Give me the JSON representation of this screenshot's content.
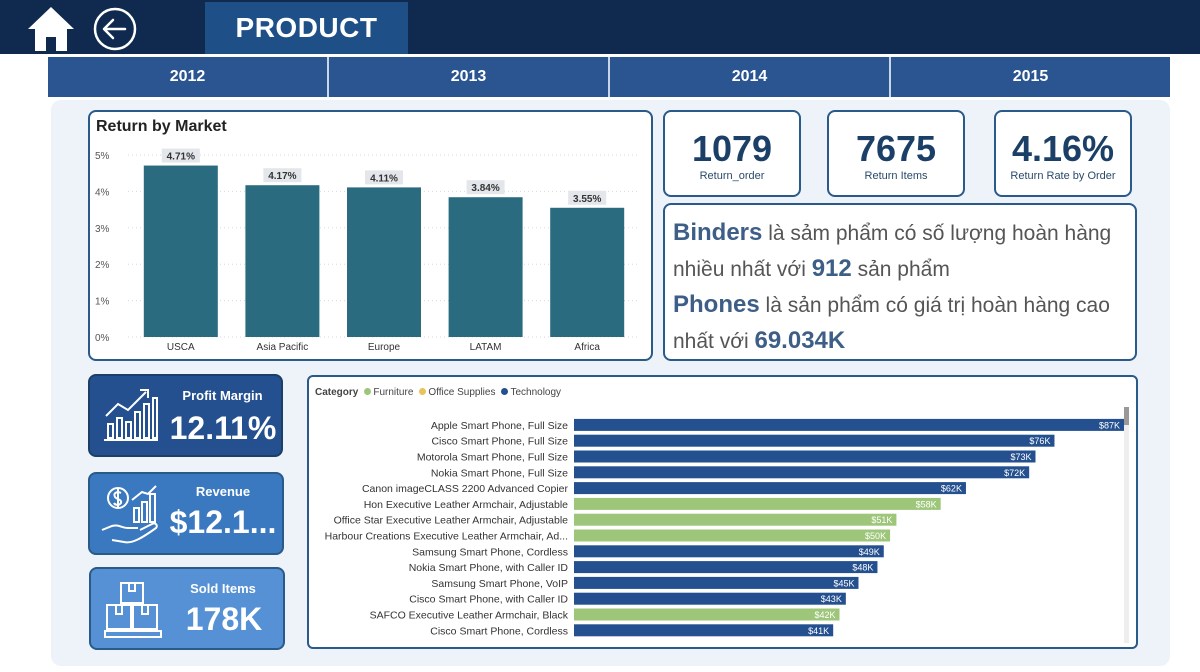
{
  "header": {
    "title": "PRODUCT"
  },
  "years": [
    "2012",
    "2013",
    "2014",
    "2015"
  ],
  "kpis": {
    "return_order": {
      "value": "1079",
      "label": "Return_order"
    },
    "return_items": {
      "value": "7675",
      "label": "Return Items"
    },
    "return_rate": {
      "value": "4.16%",
      "label": "Return Rate by Order"
    }
  },
  "insight": {
    "p1_bold": "Binders",
    "p1_text": " là sảm phẩm có số lượng hoàn hàng nhiều nhất với ",
    "p1_num": "912",
    "p1_tail": " sản phẩm",
    "p2_bold": "Phones",
    "p2_text": " là sản phẩm có giá trị hoàn hàng cao nhất với ",
    "p2_num": "69.034K"
  },
  "left_cards": {
    "profit_margin": {
      "title": "Profit Margin",
      "value": "12.11%",
      "icon": "chart-growth-icon"
    },
    "revenue": {
      "title": "Revenue",
      "value": "$12.1...",
      "icon": "money-hand-icon"
    },
    "sold_items": {
      "title": "Sold Items",
      "value": "178K",
      "icon": "boxes-icon"
    }
  },
  "colors": {
    "furniture": "#9dc67a",
    "office_supplies": "#e8c35a",
    "technology": "#24508f",
    "market_bar": "#2a6b80"
  },
  "chart_data": [
    {
      "type": "bar",
      "title": "Return by Market",
      "categories": [
        "USCA",
        "Asia Pacific",
        "Europe",
        "LATAM",
        "Africa"
      ],
      "values": [
        4.71,
        4.17,
        4.11,
        3.84,
        3.55
      ],
      "data_labels": [
        "4.71%",
        "4.17%",
        "4.11%",
        "3.84%",
        "3.55%"
      ],
      "y_ticks": [
        "0%",
        "1%",
        "2%",
        "3%",
        "4%",
        "5%"
      ],
      "ylim": [
        0,
        5
      ],
      "grid": true
    },
    {
      "type": "bar",
      "orientation": "horizontal",
      "legend_title": "Category",
      "legend": [
        {
          "name": "Furniture",
          "color": "#9dc67a"
        },
        {
          "name": "Office Supplies",
          "color": "#e8c35a"
        },
        {
          "name": "Technology",
          "color": "#24508f"
        }
      ],
      "items": [
        {
          "name": "Apple Smart Phone, Full Size",
          "value": 87,
          "label": "$87K",
          "category": "Technology"
        },
        {
          "name": "Cisco Smart Phone, Full Size",
          "value": 76,
          "label": "$76K",
          "category": "Technology"
        },
        {
          "name": "Motorola Smart Phone, Full Size",
          "value": 73,
          "label": "$73K",
          "category": "Technology"
        },
        {
          "name": "Nokia Smart Phone, Full Size",
          "value": 72,
          "label": "$72K",
          "category": "Technology"
        },
        {
          "name": "Canon imageCLASS 2200 Advanced Copier",
          "value": 62,
          "label": "$62K",
          "category": "Technology"
        },
        {
          "name": "Hon Executive Leather Armchair, Adjustable",
          "value": 58,
          "label": "$58K",
          "category": "Furniture"
        },
        {
          "name": "Office Star Executive Leather Armchair, Adjustable",
          "value": 51,
          "label": "$51K",
          "category": "Furniture"
        },
        {
          "name": "Harbour Creations Executive Leather Armchair, Ad...",
          "value": 50,
          "label": "$50K",
          "category": "Furniture"
        },
        {
          "name": "Samsung Smart Phone, Cordless",
          "value": 49,
          "label": "$49K",
          "category": "Technology"
        },
        {
          "name": "Nokia Smart Phone, with Caller ID",
          "value": 48,
          "label": "$48K",
          "category": "Technology"
        },
        {
          "name": "Samsung Smart Phone, VoIP",
          "value": 45,
          "label": "$45K",
          "category": "Technology"
        },
        {
          "name": "Cisco Smart Phone, with Caller ID",
          "value": 43,
          "label": "$43K",
          "category": "Technology"
        },
        {
          "name": "SAFCO Executive Leather Armchair, Black",
          "value": 42,
          "label": "$42K",
          "category": "Furniture"
        },
        {
          "name": "Cisco Smart Phone, Cordless",
          "value": 41,
          "label": "$41K",
          "category": "Technology"
        }
      ],
      "xlim": [
        0,
        87
      ]
    }
  ]
}
